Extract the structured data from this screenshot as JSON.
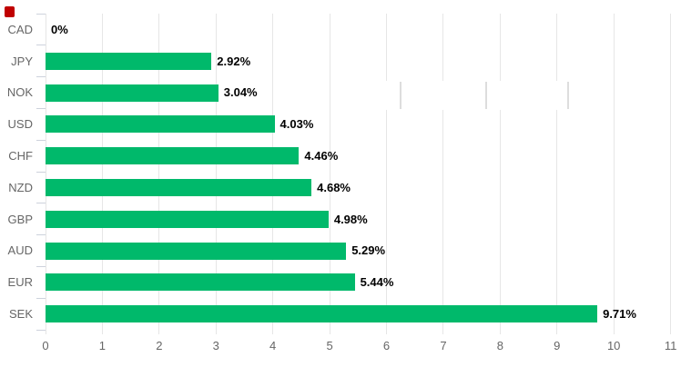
{
  "chart_data": {
    "type": "bar",
    "orientation": "horizontal",
    "categories": [
      "CAD",
      "JPY",
      "NOK",
      "USD",
      "CHF",
      "NZD",
      "GBP",
      "AUD",
      "EUR",
      "SEK"
    ],
    "values": [
      0,
      2.92,
      3.04,
      4.03,
      4.46,
      4.68,
      4.98,
      5.29,
      5.44,
      9.71
    ],
    "value_labels": [
      "0%",
      "2.92%",
      "3.04%",
      "4.03%",
      "4.46%",
      "4.68%",
      "4.98%",
      "5.29%",
      "5.44%",
      "9.71%"
    ],
    "x_tick_labels": [
      "0",
      "1",
      "2",
      "3",
      "4",
      "5",
      "6",
      "7",
      "8",
      "9",
      "10",
      "11"
    ],
    "xlim": [
      0,
      11
    ],
    "grid": true,
    "legend_position": "none",
    "bar_color": "#00B96B"
  },
  "colors": {
    "bar": "#00B96B",
    "gridline": "#E6E6E6",
    "tick": "#CDD2DC",
    "category_label": "#666666",
    "axis_tick_label": "#666666",
    "value_label": "#000000",
    "background": "#FFFFFF",
    "red_marker": "#C00000",
    "overlay_fragment": "#DDDDDD"
  }
}
